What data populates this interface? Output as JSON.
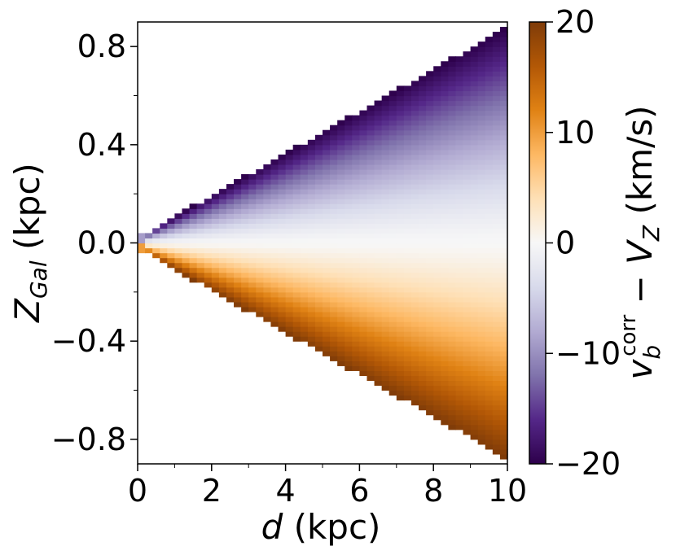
{
  "chart_data": {
    "type": "heatmap",
    "title": "",
    "xlabel": {
      "var": "d",
      "rest": " (kpc)"
    },
    "ylabel": {
      "var": "Z",
      "sub": "Gal",
      "rest": " (kpc)"
    },
    "xlim": [
      0,
      10
    ],
    "ylim": [
      -0.9,
      0.9
    ],
    "x_ticks": [
      0,
      2,
      4,
      6,
      8,
      10
    ],
    "x_tick_labels": [
      "0",
      "2",
      "4",
      "6",
      "8",
      "10"
    ],
    "y_ticks": [
      -0.8,
      -0.4,
      0.0,
      0.4,
      0.8
    ],
    "y_tick_labels": [
      "−0.8",
      "−0.4",
      "0.0",
      "0.4",
      "0.8"
    ],
    "colormap": "PuOr_r",
    "colormap_stops": [
      "#2d004b",
      "#542788",
      "#8073ac",
      "#b2abd2",
      "#d8daeb",
      "#f7f7f7",
      "#fee0b6",
      "#fdb863",
      "#e08214",
      "#b35806",
      "#7f3b08"
    ],
    "colorbar": {
      "vmin": -20,
      "vmax": 20,
      "ticks": [
        -20,
        -10,
        0,
        10,
        20
      ],
      "tick_labels": [
        "−20",
        "−10",
        "0",
        "10",
        "20"
      ],
      "label": {
        "var": "v",
        "sub": "b",
        "sup": "corr",
        "rest1": " − ",
        "var2": "V",
        "sub2": "Z",
        "rest2": " (km/s)"
      }
    },
    "field": {
      "description": "velocity difference as function of distance and height; nonzero only inside wedge |Z| < 0.086 d",
      "wedge_slope": 0.086,
      "x_bins": 50,
      "y_bins": 90,
      "value_at_edge": 20,
      "sign": "positive below plane, negative above plane"
    },
    "grid": false,
    "legend": "none"
  }
}
